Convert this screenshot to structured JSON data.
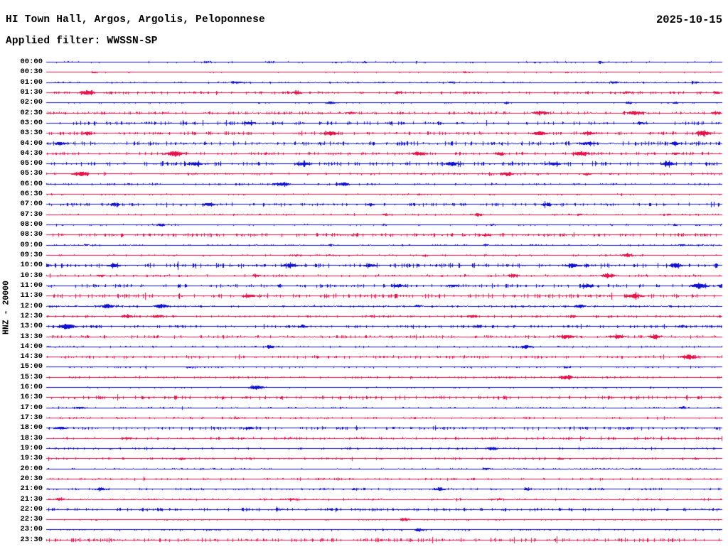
{
  "header": {
    "title": "HI Town Hall, Argos, Argolis, Peloponnese",
    "filter": "Applied filter: WWSSN-SP",
    "date": "2025-10-15"
  },
  "trace_colors": {
    "blue": "#0f0fd2",
    "red": "#ea1048"
  },
  "chart_data": {
    "type": "line",
    "title": "HI Town Hall, Argos, Argolis, Peloponnese",
    "subtitle": "Applied filter: WWSSN-SP",
    "date": "2025-10-15",
    "ylabel": "HNZ - 20000",
    "xlabel": "",
    "legend": "none",
    "grid": false,
    "row_duration_minutes": 30,
    "row_color_cycle": [
      "blue",
      "red"
    ],
    "categories": [
      "00:00",
      "00:30",
      "01:00",
      "01:30",
      "02:00",
      "02:30",
      "03:00",
      "03:30",
      "04:00",
      "04:30",
      "05:00",
      "05:30",
      "06:00",
      "06:30",
      "07:00",
      "07:30",
      "08:00",
      "08:30",
      "09:00",
      "09:30",
      "10:00",
      "10:30",
      "11:00",
      "11:30",
      "12:00",
      "12:30",
      "13:00",
      "13:30",
      "14:00",
      "14:30",
      "15:00",
      "15:30",
      "16:00",
      "16:30",
      "17:00",
      "17:30",
      "18:00",
      "18:30",
      "19:00",
      "19:30",
      "20:00",
      "20:30",
      "21:00",
      "21:30",
      "22:00",
      "22:30",
      "23:00",
      "23:30"
    ],
    "rows": [
      {
        "time": "00:00",
        "color": "blue",
        "noise": 0.5,
        "events": [
          [
            0.24,
            1.2,
            6
          ],
          [
            0.33,
            1.3,
            5
          ],
          [
            0.47,
            1.1,
            5
          ],
          [
            0.82,
            1.4,
            6
          ]
        ]
      },
      {
        "time": "00:30",
        "color": "red",
        "noise": 0.4,
        "events": [
          [
            0.07,
            1.6,
            4
          ],
          [
            0.62,
            1.2,
            4
          ],
          [
            0.77,
            1.0,
            4
          ]
        ]
      },
      {
        "time": "01:00",
        "color": "blue",
        "noise": 0.6,
        "events": [
          [
            0.28,
            1.7,
            10
          ],
          [
            0.6,
            1.2,
            6
          ],
          [
            0.84,
            1.3,
            8
          ],
          [
            0.96,
            1.2,
            5
          ]
        ]
      },
      {
        "time": "01:30",
        "color": "red",
        "noise": 0.9,
        "events": [
          [
            0.06,
            3.2,
            9
          ],
          [
            0.37,
            1.8,
            8
          ],
          [
            0.52,
            1.3,
            6
          ],
          [
            0.86,
            1.4,
            6
          ],
          [
            0.99,
            1.6,
            5
          ]
        ]
      },
      {
        "time": "02:00",
        "color": "blue",
        "noise": 0.5,
        "events": [
          [
            0.42,
            1.8,
            7
          ],
          [
            0.68,
            1.2,
            5
          ],
          [
            0.86,
            1.5,
            6
          ],
          [
            0.93,
            1.3,
            5
          ]
        ]
      },
      {
        "time": "02:30",
        "color": "red",
        "noise": 1.0,
        "events": [
          [
            0.45,
            1.4,
            7
          ],
          [
            0.73,
            2.6,
            9
          ],
          [
            0.87,
            2.8,
            10
          ],
          [
            0.99,
            1.8,
            6
          ]
        ]
      },
      {
        "time": "03:00",
        "color": "blue",
        "noise": 1.3,
        "events": [
          [
            0.3,
            1.6,
            8
          ],
          [
            0.88,
            1.4,
            6
          ]
        ]
      },
      {
        "time": "03:30",
        "color": "red",
        "noise": 1.2,
        "events": [
          [
            0.06,
            1.6,
            6
          ],
          [
            0.42,
            2.4,
            9
          ],
          [
            0.73,
            2.4,
            10
          ],
          [
            0.8,
            2.0,
            8
          ],
          [
            0.97,
            2.8,
            9
          ]
        ]
      },
      {
        "time": "04:00",
        "color": "blue",
        "noise": 1.4,
        "events": [
          [
            0.02,
            2.0,
            8
          ],
          [
            0.8,
            2.2,
            9
          ],
          [
            0.93,
            1.6,
            6
          ]
        ]
      },
      {
        "time": "04:30",
        "color": "red",
        "noise": 1.0,
        "events": [
          [
            0.19,
            3.6,
            10
          ],
          [
            0.55,
            2.4,
            8
          ],
          [
            0.67,
            1.8,
            7
          ],
          [
            0.79,
            3.0,
            10
          ],
          [
            0.93,
            1.6,
            6
          ]
        ]
      },
      {
        "time": "05:00",
        "color": "blue",
        "noise": 1.5,
        "events": [
          [
            0.22,
            2.4,
            8
          ],
          [
            0.38,
            2.0,
            8
          ],
          [
            0.6,
            2.8,
            8
          ],
          [
            0.75,
            1.8,
            7
          ],
          [
            0.92,
            2.2,
            8
          ]
        ]
      },
      {
        "time": "05:30",
        "color": "red",
        "noise": 0.8,
        "events": [
          [
            0.05,
            2.8,
            11
          ],
          [
            0.68,
            2.4,
            9
          ],
          [
            0.8,
            1.4,
            6
          ]
        ]
      },
      {
        "time": "06:00",
        "color": "blue",
        "noise": 0.7,
        "events": [
          [
            0.35,
            2.8,
            10
          ],
          [
            0.44,
            2.4,
            8
          ]
        ]
      },
      {
        "time": "06:30",
        "color": "red",
        "noise": 0.5,
        "events": [
          [
            0.55,
            1.0,
            5
          ],
          [
            0.85,
            1.0,
            4
          ]
        ]
      },
      {
        "time": "07:00",
        "color": "blue",
        "noise": 1.1,
        "events": [
          [
            0.1,
            1.8,
            7
          ],
          [
            0.24,
            2.2,
            8
          ],
          [
            0.48,
            1.5,
            6
          ],
          [
            0.74,
            1.9,
            7
          ]
        ]
      },
      {
        "time": "07:30",
        "color": "red",
        "noise": 0.6,
        "events": [
          [
            0.5,
            1.3,
            6
          ],
          [
            0.64,
            1.5,
            6
          ],
          [
            0.79,
            1.2,
            5
          ],
          [
            0.92,
            1.2,
            5
          ]
        ]
      },
      {
        "time": "08:00",
        "color": "blue",
        "noise": 0.5,
        "events": [
          [
            0.17,
            1.5,
            7
          ],
          [
            0.5,
            1.1,
            5
          ],
          [
            0.66,
            1.1,
            5
          ],
          [
            0.93,
            1.1,
            5
          ]
        ]
      },
      {
        "time": "08:30",
        "color": "red",
        "noise": 1.2,
        "events": [
          [
            0.65,
            1.5,
            7
          ]
        ]
      },
      {
        "time": "09:00",
        "color": "blue",
        "noise": 0.6,
        "events": [
          [
            0.06,
            1.1,
            5
          ],
          [
            0.42,
            1.2,
            5
          ],
          [
            0.65,
            1.1,
            5
          ],
          [
            0.94,
            1.4,
            5
          ]
        ]
      },
      {
        "time": "09:30",
        "color": "red",
        "noise": 0.6,
        "events": [
          [
            0.37,
            1.2,
            5
          ],
          [
            0.56,
            1.1,
            5
          ],
          [
            0.86,
            2.4,
            8
          ]
        ]
      },
      {
        "time": "10:00",
        "color": "blue",
        "noise": 1.6,
        "events": [
          [
            0.1,
            1.8,
            7
          ],
          [
            0.36,
            2.4,
            8
          ],
          [
            0.48,
            2.0,
            7
          ],
          [
            0.78,
            1.9,
            7
          ],
          [
            0.93,
            2.2,
            8
          ]
        ]
      },
      {
        "time": "10:30",
        "color": "red",
        "noise": 0.8,
        "events": [
          [
            0.08,
            1.4,
            6
          ],
          [
            0.31,
            1.5,
            6
          ],
          [
            0.69,
            1.8,
            7
          ],
          [
            0.83,
            2.8,
            9
          ]
        ]
      },
      {
        "time": "11:00",
        "color": "blue",
        "noise": 1.2,
        "events": [
          [
            0.52,
            2.0,
            8
          ],
          [
            0.6,
            1.8,
            7
          ],
          [
            0.8,
            2.0,
            8
          ],
          [
            0.965,
            3.2,
            10
          ],
          [
            1.0,
            2.6,
            6
          ]
        ]
      },
      {
        "time": "11:30",
        "color": "red",
        "noise": 1.5,
        "events": [
          [
            0.3,
            1.9,
            8
          ],
          [
            0.87,
            3.0,
            10
          ]
        ]
      },
      {
        "time": "12:00",
        "color": "blue",
        "noise": 0.7,
        "events": [
          [
            0.09,
            2.8,
            8
          ],
          [
            0.17,
            2.8,
            9
          ],
          [
            0.55,
            1.5,
            6
          ],
          [
            0.79,
            1.9,
            7
          ]
        ]
      },
      {
        "time": "12:30",
        "color": "red",
        "noise": 0.8,
        "events": [
          [
            0.12,
            2.3,
            8
          ],
          [
            0.165,
            1.9,
            6
          ],
          [
            0.63,
            2.0,
            7
          ],
          [
            0.78,
            1.4,
            6
          ]
        ]
      },
      {
        "time": "13:00",
        "color": "blue",
        "noise": 1.0,
        "events": [
          [
            0.03,
            3.2,
            10
          ],
          [
            0.38,
            1.6,
            6
          ],
          [
            0.64,
            1.5,
            6
          ],
          [
            0.94,
            1.6,
            6
          ]
        ]
      },
      {
        "time": "13:30",
        "color": "red",
        "noise": 1.1,
        "events": [
          [
            0.77,
            2.4,
            8
          ],
          [
            0.845,
            2.4,
            8
          ],
          [
            0.9,
            2.0,
            7
          ]
        ]
      },
      {
        "time": "14:00",
        "color": "blue",
        "noise": 0.6,
        "events": [
          [
            0.33,
            2.4,
            6
          ],
          [
            0.71,
            2.4,
            8
          ]
        ]
      },
      {
        "time": "14:30",
        "color": "red",
        "noise": 1.0,
        "events": [
          [
            0.95,
            2.8,
            9
          ]
        ]
      },
      {
        "time": "15:00",
        "color": "blue",
        "noise": 0.6,
        "events": [
          [
            0.21,
            1.2,
            5
          ],
          [
            0.77,
            1.2,
            5
          ]
        ]
      },
      {
        "time": "15:30",
        "color": "red",
        "noise": 0.7,
        "events": [
          [
            0.77,
            2.8,
            8
          ]
        ]
      },
      {
        "time": "16:00",
        "color": "blue",
        "noise": 0.5,
        "events": [
          [
            0.31,
            3.2,
            9
          ]
        ]
      },
      {
        "time": "16:30",
        "color": "red",
        "noise": 1.3,
        "events": []
      },
      {
        "time": "17:00",
        "color": "blue",
        "noise": 0.6,
        "events": [
          [
            0.05,
            1.4,
            6
          ],
          [
            0.94,
            1.2,
            5
          ]
        ]
      },
      {
        "time": "17:30",
        "color": "red",
        "noise": 0.7,
        "events": [
          [
            0.28,
            1.3,
            5
          ]
        ]
      },
      {
        "time": "18:00",
        "color": "blue",
        "noise": 1.1,
        "events": [
          [
            0.02,
            1.8,
            8
          ],
          [
            0.3,
            1.5,
            6
          ]
        ]
      },
      {
        "time": "18:30",
        "color": "red",
        "noise": 0.9,
        "events": [
          [
            0.12,
            1.5,
            6
          ]
        ]
      },
      {
        "time": "19:00",
        "color": "blue",
        "noise": 0.7,
        "events": [
          [
            0.66,
            2.4,
            8
          ]
        ]
      },
      {
        "time": "19:30",
        "color": "red",
        "noise": 0.8,
        "events": [
          [
            0.2,
            1.4,
            6
          ],
          [
            0.76,
            1.3,
            5
          ]
        ]
      },
      {
        "time": "20:00",
        "color": "blue",
        "noise": 0.5,
        "events": [
          [
            0.65,
            1.4,
            6
          ]
        ]
      },
      {
        "time": "20:30",
        "color": "red",
        "noise": 0.8,
        "events": []
      },
      {
        "time": "21:00",
        "color": "blue",
        "noise": 0.7,
        "events": [
          [
            0.08,
            2.0,
            8
          ],
          [
            0.58,
            2.4,
            8
          ],
          [
            0.71,
            1.6,
            6
          ]
        ]
      },
      {
        "time": "21:30",
        "color": "red",
        "noise": 0.6,
        "events": [
          [
            0.02,
            1.8,
            6
          ],
          [
            0.36,
            1.3,
            5
          ],
          [
            0.67,
            1.3,
            5
          ]
        ]
      },
      {
        "time": "22:00",
        "color": "blue",
        "noise": 1.1,
        "events": []
      },
      {
        "time": "22:30",
        "color": "red",
        "noise": 0.5,
        "events": [
          [
            0.53,
            2.4,
            7
          ]
        ]
      },
      {
        "time": "23:00",
        "color": "blue",
        "noise": 0.6,
        "events": [
          [
            0.55,
            2.0,
            6
          ]
        ]
      },
      {
        "time": "23:30",
        "color": "red",
        "noise": 1.3,
        "events": []
      }
    ]
  }
}
